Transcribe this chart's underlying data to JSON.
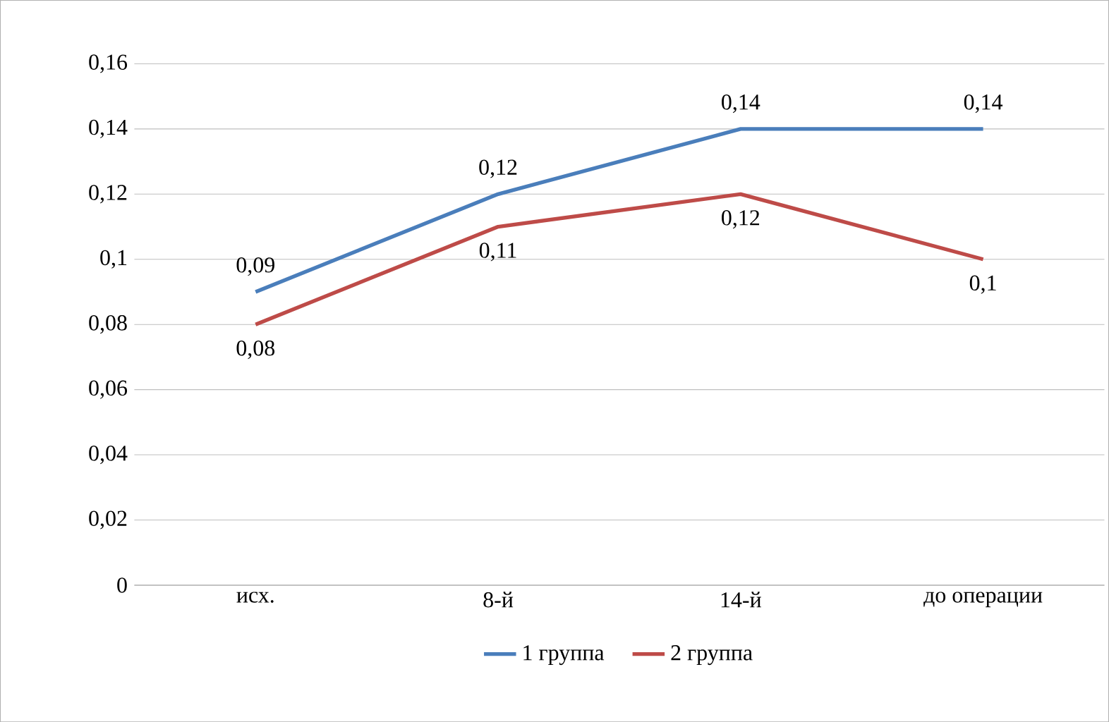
{
  "chart_data": {
    "type": "line",
    "categories": [
      "исх.",
      "8-й",
      "14-й",
      "до операции"
    ],
    "series": [
      {
        "name": "1 группа",
        "color": "#4a7ebb",
        "values": [
          0.09,
          0.12,
          0.14,
          0.14
        ],
        "value_labels": [
          "0,09",
          "0,12",
          "0,14",
          "0,14"
        ]
      },
      {
        "name": "2 группа",
        "color": "#be4b48",
        "values": [
          0.08,
          0.11,
          0.12,
          0.1
        ],
        "value_labels": [
          "0,08",
          "0,11",
          "0,12",
          "0,1"
        ]
      }
    ],
    "ylim": [
      0,
      0.16
    ],
    "yticks": [
      {
        "value": 0,
        "label": "0"
      },
      {
        "value": 0.02,
        "label": "0,02"
      },
      {
        "value": 0.04,
        "label": "0,04"
      },
      {
        "value": 0.06,
        "label": "0,06"
      },
      {
        "value": 0.08,
        "label": "0,08"
      },
      {
        "value": 0.1,
        "label": "0,1"
      },
      {
        "value": 0.12,
        "label": "0,12"
      },
      {
        "value": 0.14,
        "label": "0,14"
      },
      {
        "value": 0.16,
        "label": "0,16"
      }
    ],
    "grid": "y",
    "legend": "bottom"
  }
}
